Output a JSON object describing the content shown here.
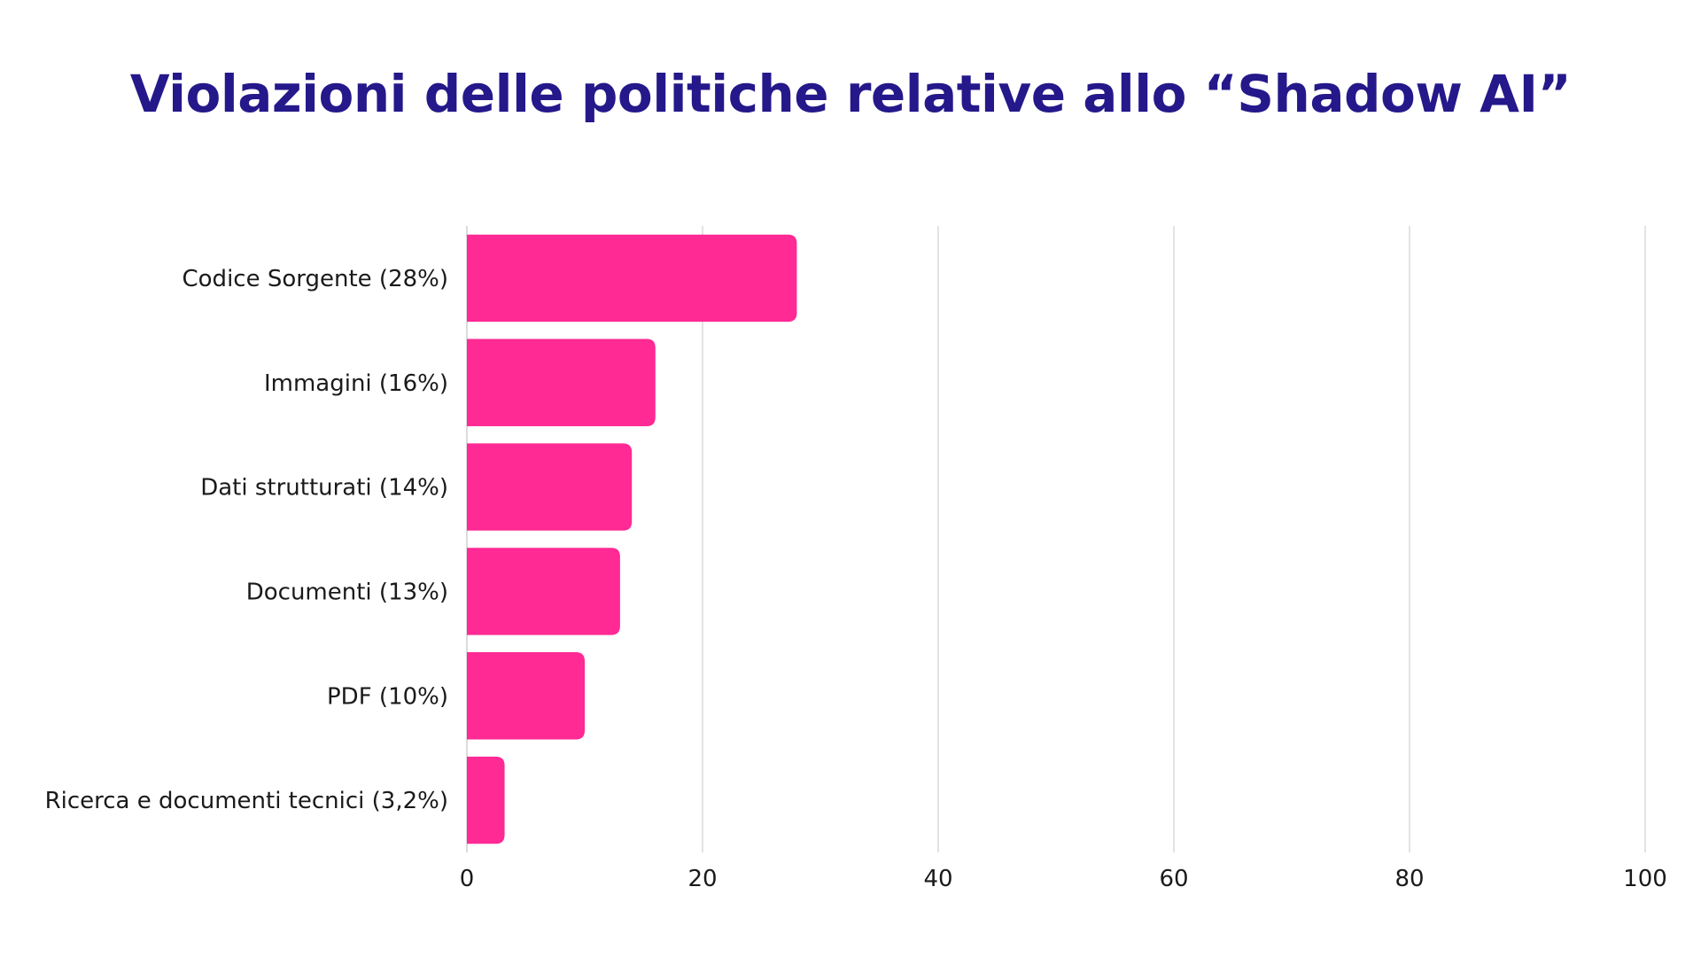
{
  "chart_data": {
    "type": "bar",
    "orientation": "horizontal",
    "title": "Violazioni delle politiche relative allo “Shadow AI”",
    "categories": [
      "Codice Sorgente (28%)",
      "Immagini (16%)",
      "Dati strutturati (14%)",
      "Documenti (13%)",
      "PDF (10%)",
      "Ricerca e documenti tecnici (3,2%)"
    ],
    "values": [
      28,
      16,
      14,
      13,
      10,
      3.2
    ],
    "xlim": [
      0,
      100
    ],
    "xticks": [
      "0",
      "20",
      "40",
      "60",
      "80",
      "100"
    ],
    "xlabel": "",
    "ylabel": "",
    "grid": true,
    "bar_color": "#ff2a94"
  },
  "colors": {
    "title": "#25188a",
    "bar": "#ff2a94",
    "grid": "#e3e3e3"
  }
}
